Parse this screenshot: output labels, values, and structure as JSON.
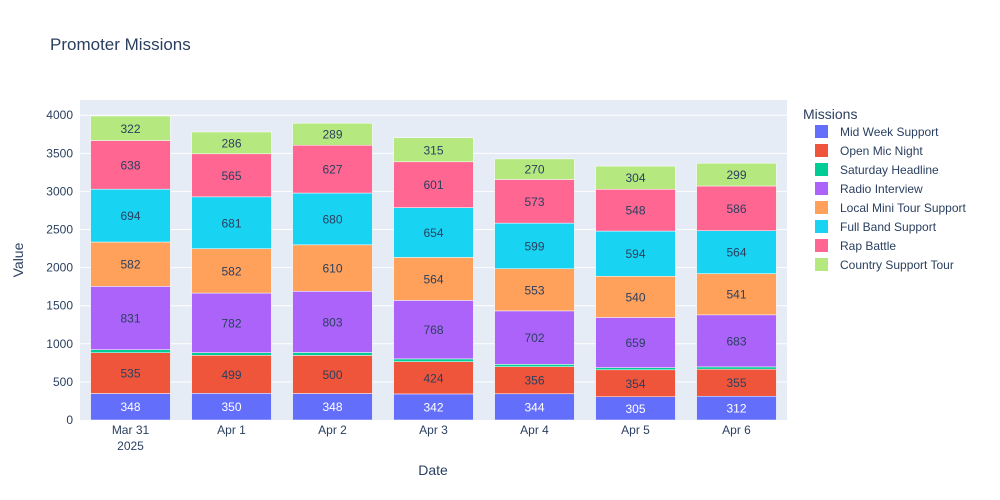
{
  "chart_data": {
    "type": "bar",
    "stacked": true,
    "title": "Promoter Missions",
    "xlabel": "Date",
    "ylabel": "Value",
    "ylim": [
      0,
      4200
    ],
    "yticks": [
      0,
      500,
      1000,
      1500,
      2000,
      2500,
      3000,
      3500,
      4000
    ],
    "categories": [
      "Mar 31",
      "Apr 1",
      "Apr 2",
      "Apr 3",
      "Apr 4",
      "Apr 5",
      "Apr 6"
    ],
    "category_sublabel": "2025",
    "legend_title": "Missions",
    "legend_position": "right",
    "grid": true,
    "series": [
      {
        "name": "Mid Week Support",
        "color": "#636efa",
        "label_color": "#ffffff",
        "values": [
          348,
          350,
          348,
          342,
          344,
          305,
          312
        ],
        "show_labels": true
      },
      {
        "name": "Open Mic Night",
        "color": "#ef553b",
        "label_color": "#2a3f5f",
        "values": [
          535,
          499,
          500,
          424,
          356,
          354,
          355
        ],
        "show_labels": true
      },
      {
        "name": "Saturday Headline",
        "color": "#00cc96",
        "label_color": "#2a3f5f",
        "values": [
          40,
          35,
          38,
          36,
          30,
          28,
          30
        ],
        "show_labels": false
      },
      {
        "name": "Radio Interview",
        "color": "#ab63fa",
        "label_color": "#2a3f5f",
        "values": [
          831,
          782,
          803,
          768,
          702,
          659,
          683
        ],
        "show_labels": true
      },
      {
        "name": "Local Mini Tour Support",
        "color": "#ffa15a",
        "label_color": "#2a3f5f",
        "values": [
          582,
          582,
          610,
          564,
          553,
          540,
          541
        ],
        "show_labels": true
      },
      {
        "name": "Full Band Support",
        "color": "#19d3f3",
        "label_color": "#2a3f5f",
        "values": [
          694,
          681,
          680,
          654,
          599,
          594,
          564
        ],
        "show_labels": true
      },
      {
        "name": "Rap Battle",
        "color": "#ff6692",
        "label_color": "#2a3f5f",
        "values": [
          638,
          565,
          627,
          601,
          573,
          548,
          586
        ],
        "show_labels": true
      },
      {
        "name": "Country Support Tour",
        "color": "#b6e880",
        "label_color": "#2a3f5f",
        "values": [
          322,
          286,
          289,
          315,
          270,
          304,
          299
        ],
        "show_labels": true
      }
    ]
  }
}
